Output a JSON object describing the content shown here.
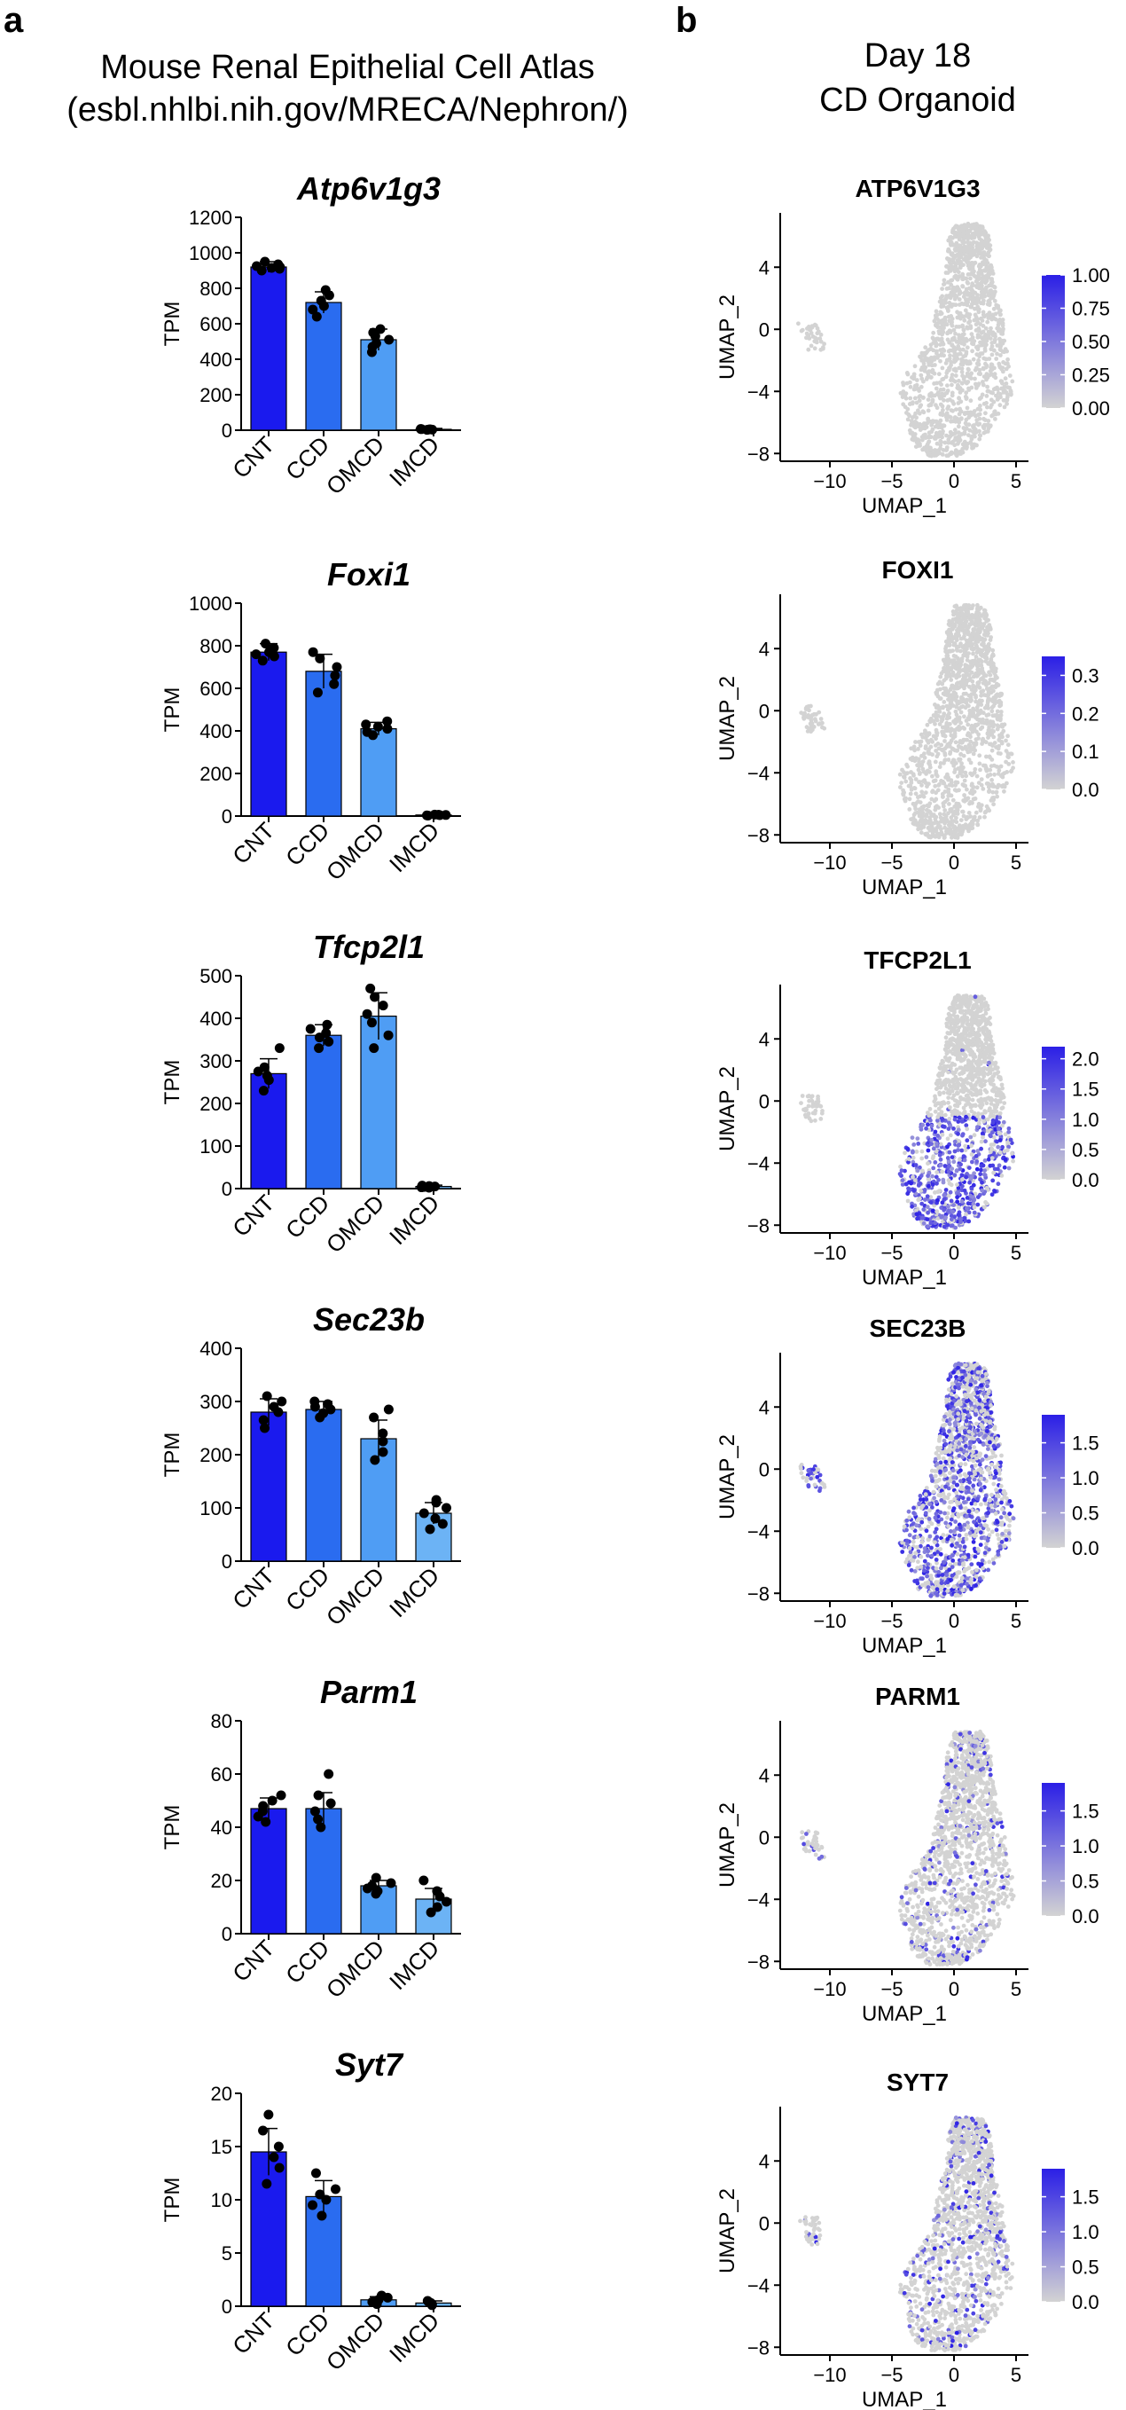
{
  "panel_a": {
    "letter": "a",
    "title_line1": "Mouse Renal Epithelial Cell Atlas",
    "title_line2": "(esbl.nhlbi.nih.gov/MRECA/Nephron/)"
  },
  "panel_b": {
    "letter": "b",
    "title_line1": "Day 18",
    "title_line2": "CD Organoid"
  },
  "colors": {
    "CNT": "#1a1aee",
    "CCD": "#2a6cf0",
    "OMCD": "#4f9df4",
    "IMCD": "#6cb3f5",
    "umap_grey": "#d3d3d3",
    "umap_high": "#2b1fe6"
  },
  "chart_data": [
    {
      "type": "bar",
      "title": "Atp6v1g3",
      "ylabel": "TPM",
      "ylim": [
        0,
        1200
      ],
      "yticks": [
        0,
        200,
        400,
        600,
        800,
        1000,
        1200
      ],
      "categories": [
        "CNT",
        "CCD",
        "OMCD",
        "IMCD"
      ],
      "values": [
        920,
        720,
        510,
        5
      ],
      "errors": [
        30,
        60,
        60,
        5
      ],
      "points": [
        [
          900,
          910,
          915,
          920,
          925,
          935,
          950
        ],
        [
          640,
          680,
          700,
          730,
          760,
          790
        ],
        [
          440,
          470,
          490,
          510,
          530,
          550,
          570
        ],
        [
          2,
          3,
          4,
          5,
          6,
          7
        ]
      ]
    },
    {
      "type": "bar",
      "title": "Foxi1",
      "ylabel": "TPM",
      "ylim": [
        0,
        1000
      ],
      "yticks": [
        0,
        200,
        400,
        600,
        800,
        1000
      ],
      "categories": [
        "CNT",
        "CCD",
        "OMCD",
        "IMCD"
      ],
      "values": [
        770,
        680,
        410,
        5
      ],
      "errors": [
        40,
        80,
        30,
        3
      ],
      "points": [
        [
          730,
          750,
          760,
          770,
          790,
          810
        ],
        [
          580,
          620,
          660,
          700,
          740,
          770
        ],
        [
          380,
          395,
          410,
          420,
          430,
          445
        ],
        [
          2,
          3,
          4,
          5,
          6,
          7
        ]
      ]
    },
    {
      "type": "bar",
      "title": "Tfcp2l1",
      "ylabel": "TPM",
      "ylim": [
        0,
        500
      ],
      "yticks": [
        0,
        100,
        200,
        300,
        400,
        500
      ],
      "categories": [
        "CNT",
        "CCD",
        "OMCD",
        "IMCD"
      ],
      "values": [
        270,
        360,
        405,
        5
      ],
      "errors": [
        35,
        25,
        55,
        3
      ],
      "points": [
        [
          230,
          255,
          265,
          275,
          285,
          330
        ],
        [
          330,
          345,
          355,
          365,
          375,
          385
        ],
        [
          330,
          360,
          390,
          410,
          430,
          450,
          470
        ],
        [
          2,
          3,
          4,
          5,
          6,
          7
        ]
      ]
    },
    {
      "type": "bar",
      "title": "Sec23b",
      "ylabel": "TPM",
      "ylim": [
        0,
        400
      ],
      "yticks": [
        0,
        100,
        200,
        300,
        400
      ],
      "categories": [
        "CNT",
        "CCD",
        "OMCD",
        "IMCD"
      ],
      "values": [
        280,
        285,
        230,
        90
      ],
      "errors": [
        25,
        15,
        35,
        20
      ],
      "points": [
        [
          250,
          265,
          280,
          290,
          300,
          310
        ],
        [
          270,
          278,
          285,
          290,
          295,
          300
        ],
        [
          190,
          205,
          225,
          240,
          270,
          285
        ],
        [
          60,
          70,
          80,
          90,
          100,
          110,
          115
        ]
      ]
    },
    {
      "type": "bar",
      "title": "Parm1",
      "ylabel": "TPM",
      "ylim": [
        0,
        80
      ],
      "yticks": [
        0,
        20,
        40,
        60,
        80
      ],
      "categories": [
        "CNT",
        "CCD",
        "OMCD",
        "IMCD"
      ],
      "values": [
        47,
        47,
        18,
        13
      ],
      "errors": [
        4,
        6,
        2,
        4
      ],
      "points": [
        [
          42,
          44,
          46,
          48,
          50,
          52
        ],
        [
          40,
          43,
          46,
          49,
          52,
          60
        ],
        [
          15,
          16,
          17,
          18,
          19,
          21
        ],
        [
          8,
          10,
          12,
          14,
          16,
          20
        ]
      ]
    },
    {
      "type": "bar",
      "title": "Syt7",
      "ylabel": "TPM",
      "ylim": [
        0,
        20
      ],
      "yticks": [
        0,
        5,
        10,
        15,
        20
      ],
      "categories": [
        "CNT",
        "CCD",
        "OMCD",
        "IMCD"
      ],
      "values": [
        14.5,
        10.3,
        0.6,
        0.3
      ],
      "errors": [
        2.2,
        1.5,
        0.3,
        0.2
      ],
      "points": [
        [
          11.5,
          13,
          14,
          15,
          16.5,
          18
        ],
        [
          8.5,
          9.5,
          10,
          10.5,
          11,
          12.5
        ],
        [
          0.2,
          0.4,
          0.6,
          0.8,
          1.0
        ],
        [
          0.1,
          0.2,
          0.3,
          0.4,
          0.5
        ]
      ]
    },
    {
      "type": "scatter",
      "title": "ATP6V1G3",
      "xlabel": "UMAP_1",
      "ylabel": "UMAP_2",
      "xlim": [
        -14,
        6
      ],
      "ylim": [
        -8.5,
        7.5
      ],
      "xticks": [
        -10,
        -5,
        0,
        5
      ],
      "yticks": [
        -8,
        -4,
        0,
        4
      ],
      "colorbar": {
        "min": 0,
        "max": 1.0,
        "ticks": [
          "0.00",
          "0.25",
          "0.50",
          "0.75",
          "1.00"
        ]
      },
      "expression_region": "none",
      "expressing_fraction": 0.0
    },
    {
      "type": "scatter",
      "title": "FOXI1",
      "xlabel": "UMAP_1",
      "ylabel": "UMAP_2",
      "xlim": [
        -14,
        6
      ],
      "ylim": [
        -8.5,
        7.5
      ],
      "xticks": [
        -10,
        -5,
        0,
        5
      ],
      "yticks": [
        -8,
        -4,
        0,
        4
      ],
      "colorbar": {
        "min": 0,
        "max": 0.35,
        "ticks": [
          "0.0",
          "0.1",
          "0.2",
          "0.3"
        ]
      },
      "expression_region": "none",
      "expressing_fraction": 0.0
    },
    {
      "type": "scatter",
      "title": "TFCP2L1",
      "xlabel": "UMAP_1",
      "ylabel": "UMAP_2",
      "xlim": [
        -14,
        6
      ],
      "ylim": [
        -8.5,
        7.5
      ],
      "xticks": [
        -10,
        -5,
        0,
        5
      ],
      "yticks": [
        -8,
        -4,
        0,
        4
      ],
      "colorbar": {
        "min": 0,
        "max": 2.2,
        "ticks": [
          "0.0",
          "0.5",
          "1.0",
          "1.5",
          "2.0"
        ]
      },
      "expression_region": "lower",
      "expressing_fraction": 0.35
    },
    {
      "type": "scatter",
      "title": "SEC23B",
      "xlabel": "UMAP_1",
      "ylabel": "UMAP_2",
      "xlim": [
        -14,
        6
      ],
      "ylim": [
        -8.5,
        7.5
      ],
      "xticks": [
        -10,
        -5,
        0,
        5
      ],
      "yticks": [
        -8,
        -4,
        0,
        4
      ],
      "colorbar": {
        "min": 0,
        "max": 1.9,
        "ticks": [
          "0.0",
          "0.5",
          "1.0",
          "1.5"
        ]
      },
      "expression_region": "all",
      "expressing_fraction": 0.55
    },
    {
      "type": "scatter",
      "title": "PARM1",
      "xlabel": "UMAP_1",
      "ylabel": "UMAP_2",
      "xlim": [
        -14,
        6
      ],
      "ylim": [
        -8.5,
        7.5
      ],
      "xticks": [
        -10,
        -5,
        0,
        5
      ],
      "yticks": [
        -8,
        -4,
        0,
        4
      ],
      "colorbar": {
        "min": 0,
        "max": 1.9,
        "ticks": [
          "0.0",
          "0.5",
          "1.0",
          "1.5"
        ]
      },
      "expression_region": "all",
      "expressing_fraction": 0.12
    },
    {
      "type": "scatter",
      "title": "SYT7",
      "xlabel": "UMAP_1",
      "ylabel": "UMAP_2",
      "xlim": [
        -14,
        6
      ],
      "ylim": [
        -8.5,
        7.5
      ],
      "xticks": [
        -10,
        -5,
        0,
        5
      ],
      "yticks": [
        -8,
        -4,
        0,
        4
      ],
      "colorbar": {
        "min": 0,
        "max": 1.9,
        "ticks": [
          "0.0",
          "0.5",
          "1.0",
          "1.5"
        ]
      },
      "expression_region": "all",
      "expressing_fraction": 0.15
    }
  ]
}
